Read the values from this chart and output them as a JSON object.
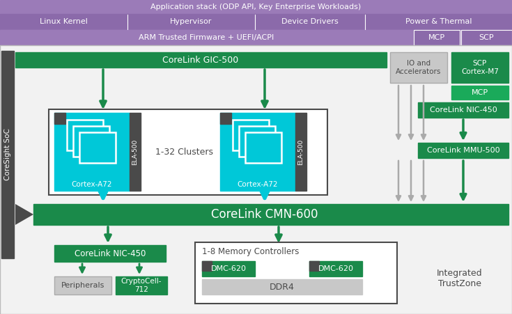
{
  "purple1": "#9b7bb8",
  "purple2": "#8b6aaa",
  "green": "#1a8a4a",
  "green2": "#1aaa5a",
  "teal": "#00c8d8",
  "gray_dark": "#4a4a4a",
  "gray_med": "#aaaaaa",
  "gray_light": "#c8c8c8",
  "white": "#ffffff",
  "bg": "#f2f2f2",
  "top_row1": "Application stack (ODP API, Key Enterprise Workloads)",
  "top_row2": [
    "Linux Kernel",
    "Hypervisor",
    "Device Drivers",
    "Power & Thermal"
  ],
  "top_row3_left": "ARM Trusted Firmware + UEFI/ACPI",
  "top_row3_right": [
    "MCP",
    "SCP"
  ],
  "sidebar": "CoreSight SoC",
  "gic": "CoreLink GIC-500",
  "clusters": "1-32 Clusters",
  "cortex": "Cortex-A72",
  "ela": "ELA-500",
  "io": "IO and\nAccelerators",
  "scp": "SCP\nCortex-M7",
  "mcp": "MCP",
  "nic_top": "CoreLink NIC-450",
  "mmu": "CoreLink MMU-500",
  "cmn": "CoreLink CMN-600",
  "nic_bot": "CoreLink NIC-450",
  "periph": "Peripherals",
  "crypto": "CryptoCell-\n712",
  "mem": "1-8 Memory Controllers",
  "dmc": "DMC-620",
  "ddr4": "DDR4",
  "tz": "Integrated\nTrustZone"
}
